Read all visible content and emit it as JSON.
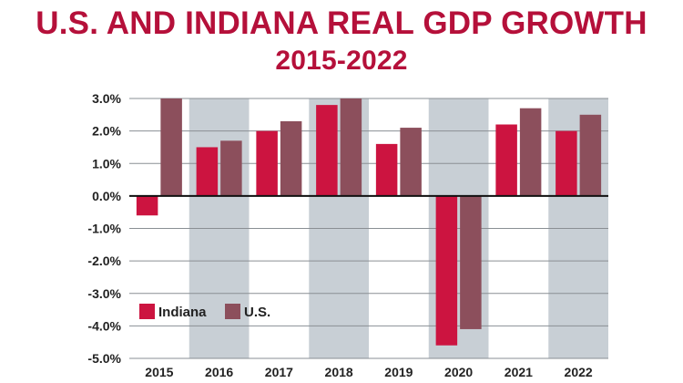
{
  "chart_data": {
    "type": "bar",
    "title": "U.S. AND INDIANA REAL GDP GROWTH",
    "subtitle": "2015-2022",
    "xlabel": "",
    "ylabel": "",
    "categories": [
      "2015",
      "2016",
      "2017",
      "2018",
      "2019",
      "2020",
      "2021",
      "2022"
    ],
    "series": [
      {
        "name": "Indiana",
        "color": "#cc1440",
        "values": [
          -0.6,
          1.5,
          2.0,
          2.8,
          1.6,
          -4.6,
          2.2,
          2.0
        ]
      },
      {
        "name": "U.S.",
        "color": "#8c4f5c",
        "values": [
          3.0,
          1.7,
          2.3,
          3.0,
          2.1,
          -4.1,
          2.7,
          2.5
        ]
      }
    ],
    "ylim": [
      -5.0,
      3.0
    ],
    "yticks": [
      "3.0%",
      "2.0%",
      "1.0%",
      "0.0%",
      "-1.0%",
      "-2.0%",
      "-3.0%",
      "-4.0%",
      "-5.0%"
    ],
    "ytick_values": [
      3,
      2,
      1,
      0,
      -1,
      -2,
      -3,
      -4,
      -5
    ],
    "grid": true,
    "legend_position": "lower-left",
    "shaded_band_color": "#c8cfd5",
    "shaded_columns": [
      "2016",
      "2018",
      "2020",
      "2022"
    ]
  }
}
